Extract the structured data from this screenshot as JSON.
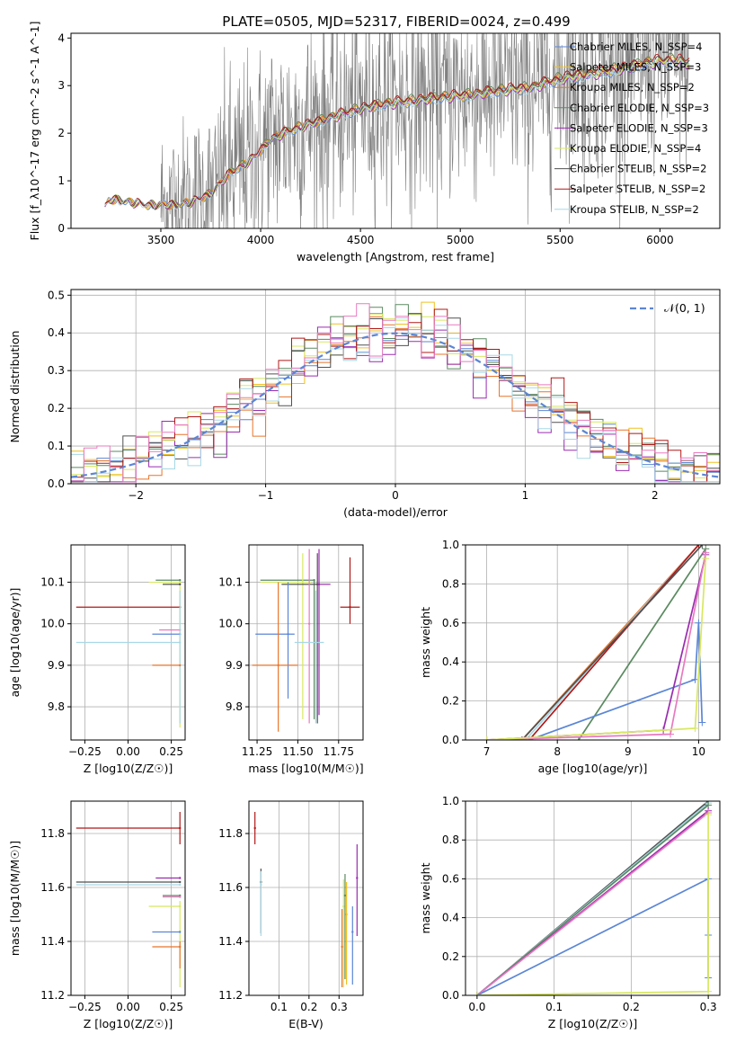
{
  "figure_title": "PLATE=0505, MJD=52317, FIBERID=0024, z=0.499",
  "colors": {
    "chabrier_miles": "#5b86d6",
    "salpeter_miles": "#f0c020",
    "kroupa_miles": "#e8742a",
    "chabrier_elodie": "#5a8a60",
    "salpeter_elodie": "#9a2cb0",
    "kroupa_elodie": "#d7e860",
    "chabrier_stelib": "#505050",
    "salpeter_stelib": "#b01818",
    "kroupa_stelib": "#a8d8e6",
    "pink": "#e87ac0",
    "data": "#808080",
    "grid": "#b0b0b0"
  },
  "chart_data": [
    {
      "id": "spectrum",
      "type": "line",
      "title": "PLATE=0505, MJD=52317, FIBERID=0024, z=0.499",
      "xlabel": "wavelength [Angstrom, rest frame]",
      "ylabel": "Flux [f_λ10^-17 erg cm^-2 s^-1 A^-1]",
      "xlim": [
        3050,
        6300
      ],
      "ylim": [
        0,
        4.1
      ],
      "xticks": [
        3500,
        4000,
        4500,
        5000,
        5500,
        6000
      ],
      "yticks": [
        0,
        1,
        2,
        3,
        4
      ],
      "grid": false,
      "legend_position": "top-right",
      "legend": [
        {
          "label": "Chabrier MILES, N_SSP=4",
          "color": "chabrier_miles"
        },
        {
          "label": "Salpeter MILES, N_SSP=3",
          "color": "salpeter_miles"
        },
        {
          "label": "Kroupa MILES, N_SSP=2",
          "color": "kroupa_miles"
        },
        {
          "label": "Chabrier ELODIE, N_SSP=3",
          "color": "chabrier_elodie"
        },
        {
          "label": "Salpeter ELODIE, N_SSP=3",
          "color": "salpeter_elodie"
        },
        {
          "label": "Kroupa ELODIE, N_SSP=4",
          "color": "kroupa_elodie"
        },
        {
          "label": "Chabrier STELIB, N_SSP=2",
          "color": "chabrier_stelib"
        },
        {
          "label": "Salpeter STELIB, N_SSP=2",
          "color": "salpeter_stelib"
        },
        {
          "label": "Kroupa STELIB, N_SSP=2",
          "color": "kroupa_stelib"
        }
      ],
      "model_continuum": {
        "x": [
          3220,
          3240,
          3280,
          3350,
          3450,
          3550,
          3650,
          3750,
          3850,
          3950,
          4050,
          4150,
          4300,
          4450,
          4600,
          4750,
          4900,
          5050,
          5200,
          5350,
          5500,
          5650,
          5800,
          5950,
          6100,
          6150
        ],
        "y": [
          0.45,
          0.6,
          0.62,
          0.55,
          0.5,
          0.5,
          0.55,
          0.75,
          1.2,
          1.45,
          1.9,
          2.1,
          2.3,
          2.5,
          2.65,
          2.72,
          2.8,
          2.85,
          2.95,
          3.0,
          3.2,
          3.3,
          3.4,
          3.55,
          3.6,
          3.5
        ]
      }
    },
    {
      "id": "residuals",
      "type": "line",
      "xlabel": "(data-model)/error",
      "ylabel": "Normed distribution",
      "xlim": [
        -2.5,
        2.5
      ],
      "ylim": [
        0,
        0.515
      ],
      "xticks": [
        -2,
        -1,
        0,
        1,
        2
      ],
      "yticks": [
        0.0,
        0.1,
        0.2,
        0.3,
        0.4,
        0.5
      ],
      "grid": true,
      "legend_position": "top-right",
      "legend": [
        {
          "label": "𝒩(0, 1)",
          "color": "chabrier_miles",
          "style": "dashed"
        }
      ],
      "bin_width": 0.1
    },
    {
      "id": "age_vs_Z",
      "type": "scatter",
      "xlabel": "Z [log10(Z/Z☉)]",
      "ylabel": "age  [log10(age/yr)]",
      "xlim": [
        -0.33,
        0.33
      ],
      "ylim": [
        9.72,
        10.19
      ],
      "xticks": [
        -0.25,
        0.0,
        0.25
      ],
      "yticks": [
        9.8,
        9.9,
        10.0,
        10.1
      ],
      "grid": true,
      "points": [
        {
          "series": "salpeter_stelib",
          "x": 0.3,
          "xlo": -0.3,
          "xhi": 0.3,
          "y": 10.04
        },
        {
          "series": "chabrier_elodie",
          "x": 0.3,
          "xlo": 0.16,
          "xhi": 0.3,
          "y": 10.105
        },
        {
          "series": "kroupa_elodie",
          "x": 0.3,
          "xlo": 0.12,
          "xhi": 0.3,
          "y": 10.1,
          "ylo": 9.75,
          "yhi": 10.1
        },
        {
          "series": "chabrier_stelib",
          "x": 0.3,
          "xlo": 0.2,
          "xhi": 0.3,
          "y": 10.095
        },
        {
          "series": "pink",
          "x": 0.3,
          "xlo": 0.18,
          "xhi": 0.3,
          "y": 9.985
        },
        {
          "series": "chabrier_miles",
          "x": 0.3,
          "xlo": 0.14,
          "xhi": 0.3,
          "y": 9.975
        },
        {
          "series": "kroupa_stelib",
          "x": 0.3,
          "xlo": -0.3,
          "xhi": 0.3,
          "y": 9.955,
          "ylo": 9.76,
          "yhi": 10.08
        },
        {
          "series": "kroupa_miles",
          "x": 0.3,
          "xlo": 0.14,
          "xhi": 0.3,
          "y": 9.9
        }
      ]
    },
    {
      "id": "age_vs_mass",
      "type": "scatter",
      "xlabel": "mass [log10(M/M☉)]",
      "ylabel": "",
      "xlim": [
        11.2,
        11.9
      ],
      "ylim": [
        9.72,
        10.19
      ],
      "xticks": [
        11.25,
        11.5,
        11.75
      ],
      "yticks": [
        9.8,
        9.9,
        10.0,
        10.1
      ],
      "grid": true,
      "points": [
        {
          "series": "salpeter_stelib",
          "x": 11.82,
          "xlo": 11.76,
          "xhi": 11.88,
          "y": 10.04,
          "ylo": 10.0,
          "yhi": 10.16
        },
        {
          "series": "chabrier_elodie",
          "x": 11.6,
          "xlo": 11.27,
          "xhi": 11.6,
          "y": 10.105,
          "ylo": 9.77,
          "yhi": 10.105
        },
        {
          "series": "kroupa_elodie",
          "x": 11.53,
          "xlo": 11.27,
          "xhi": 11.58,
          "y": 10.1,
          "ylo": 9.77,
          "yhi": 10.17
        },
        {
          "series": "chabrier_stelib",
          "x": 11.62,
          "xlo": 11.4,
          "xhi": 11.62,
          "y": 10.095,
          "ylo": 9.76,
          "yhi": 10.17
        },
        {
          "series": "salpeter_elodie",
          "x": 11.63,
          "xlo": 11.63,
          "xhi": 11.7,
          "y": 10.095,
          "ylo": 9.78,
          "yhi": 10.18
        },
        {
          "series": "pink",
          "x": 11.57,
          "y": 10.0,
          "ylo": 9.76,
          "yhi": 10.18
        },
        {
          "series": "chabrier_miles",
          "x": 11.44,
          "xlo": 11.24,
          "xhi": 11.48,
          "y": 9.975,
          "ylo": 9.82,
          "yhi": 10.1
        },
        {
          "series": "kroupa_stelib",
          "x": 11.61,
          "xlo": 11.48,
          "xhi": 11.66,
          "y": 9.955,
          "ylo": 9.76,
          "yhi": 10.08
        },
        {
          "series": "kroupa_miles",
          "x": 11.38,
          "xlo": 11.22,
          "xhi": 11.5,
          "y": 9.9,
          "ylo": 9.74,
          "yhi": 10.1
        }
      ]
    },
    {
      "id": "cumulative_age",
      "type": "line",
      "xlabel": "age  [log10(age/yr)]",
      "ylabel": "mass weight",
      "xlim": [
        6.7,
        10.3
      ],
      "ylim": [
        0,
        1.0
      ],
      "xticks": [
        7,
        8,
        9,
        10
      ],
      "yticks": [
        0.0,
        0.2,
        0.4,
        0.6,
        0.8,
        1.0
      ],
      "grid": true,
      "series": [
        {
          "name": "kroupa_miles",
          "x": [
            7.5,
            10.0
          ],
          "y": [
            0.0,
            1.0
          ]
        },
        {
          "name": "kroupa_stelib",
          "x": [
            7.55,
            10.0
          ],
          "y": [
            0.0,
            1.0
          ]
        },
        {
          "name": "salpeter_stelib",
          "x": [
            7.6,
            10.0
          ],
          "y": [
            0.0,
            1.0
          ]
        },
        {
          "name": "chabrier_stelib",
          "x": [
            7.5,
            10.05
          ],
          "y": [
            0.0,
            1.0
          ]
        },
        {
          "name": "chabrier_elodie",
          "x": [
            8.3,
            10.1
          ],
          "y": [
            0.0,
            0.98
          ]
        },
        {
          "name": "chabrier_miles",
          "x": [
            7.6,
            9.95,
            10.0,
            10.05
          ],
          "y": [
            0.0,
            0.31,
            0.6,
            0.09
          ]
        },
        {
          "name": "salpeter_elodie",
          "x": [
            7.0,
            9.5,
            10.1
          ],
          "y": [
            0.0,
            0.05,
            0.95
          ]
        },
        {
          "name": "pink",
          "x": [
            7.0,
            9.6,
            10.1
          ],
          "y": [
            0.0,
            0.03,
            0.96
          ]
        },
        {
          "name": "kroupa_elodie",
          "x": [
            7.0,
            9.95,
            10.1
          ],
          "y": [
            0.0,
            0.06,
            0.93
          ]
        }
      ]
    },
    {
      "id": "mass_vs_Z",
      "type": "scatter",
      "xlabel": "Z [log10(Z/Z☉)]",
      "ylabel": "mass [log10(M/M☉)]",
      "xlim": [
        -0.33,
        0.33
      ],
      "ylim": [
        11.2,
        11.92
      ],
      "xticks": [
        -0.25,
        0.0,
        0.25
      ],
      "yticks": [
        11.2,
        11.4,
        11.6,
        11.8
      ],
      "grid": true,
      "points": [
        {
          "series": "salpeter_stelib",
          "x": 0.3,
          "xlo": -0.3,
          "xhi": 0.3,
          "y": 11.82,
          "ylo": 11.76,
          "yhi": 11.88
        },
        {
          "series": "salpeter_elodie",
          "x": 0.3,
          "xlo": 0.16,
          "xhi": 0.3,
          "y": 11.635
        },
        {
          "series": "chabrier_stelib",
          "x": 0.3,
          "xlo": -0.3,
          "xhi": 0.3,
          "y": 11.62
        },
        {
          "series": "kroupa_stelib",
          "x": 0.3,
          "xlo": -0.3,
          "xhi": 0.3,
          "y": 11.61
        },
        {
          "series": "chabrier_elodie",
          "x": 0.3,
          "xlo": 0.2,
          "xhi": 0.3,
          "y": 11.57
        },
        {
          "series": "pink",
          "x": 0.3,
          "xlo": 0.2,
          "xhi": 0.3,
          "y": 11.565
        },
        {
          "series": "kroupa_elodie",
          "x": 0.3,
          "xlo": 0.12,
          "xhi": 0.3,
          "y": 11.53,
          "ylo": 11.23,
          "yhi": 11.55
        },
        {
          "series": "chabrier_miles",
          "x": 0.3,
          "xlo": 0.14,
          "xhi": 0.3,
          "y": 11.435
        },
        {
          "series": "kroupa_miles",
          "x": 0.3,
          "xlo": 0.14,
          "xhi": 0.3,
          "y": 11.38,
          "ylo": 11.3,
          "yhi": 11.4
        }
      ]
    },
    {
      "id": "mass_vs_EBV",
      "type": "scatter",
      "xlabel": "E(B-V)",
      "ylabel": "",
      "xlim": [
        0.0,
        0.38
      ],
      "ylim": [
        11.2,
        11.92
      ],
      "xticks": [
        0.1,
        0.2,
        0.3
      ],
      "yticks": [
        11.2,
        11.4,
        11.6,
        11.8
      ],
      "grid": true,
      "points": [
        {
          "series": "salpeter_stelib",
          "x": 0.02,
          "y": 11.82,
          "ylo": 11.76,
          "yhi": 11.88
        },
        {
          "series": "chabrier_stelib",
          "x": 0.04,
          "y": 11.62,
          "ylo": 11.43,
          "yhi": 11.67
        },
        {
          "series": "kroupa_stelib",
          "x": 0.04,
          "y": 11.61,
          "ylo": 11.42,
          "yhi": 11.66
        },
        {
          "series": "kroupa_miles",
          "x": 0.31,
          "y": 11.38,
          "ylo": 11.23,
          "yhi": 11.52
        },
        {
          "series": "kroupa_elodie",
          "x": 0.315,
          "y": 11.53,
          "ylo": 11.23,
          "yhi": 11.63
        },
        {
          "series": "chabrier_elodie",
          "x": 0.32,
          "y": 11.57,
          "ylo": 11.26,
          "yhi": 11.65
        },
        {
          "series": "salpeter_miles",
          "x": 0.325,
          "y": 11.5,
          "ylo": 11.24,
          "yhi": 11.62
        },
        {
          "series": "chabrier_miles",
          "x": 0.345,
          "y": 11.435,
          "ylo": 11.24,
          "yhi": 11.53
        },
        {
          "series": "salpeter_elodie",
          "x": 0.36,
          "y": 11.635,
          "ylo": 11.42,
          "yhi": 11.76
        }
      ]
    },
    {
      "id": "cumulative_Z",
      "type": "line",
      "xlabel": "Z [log10(Z/Z☉)]",
      "ylabel": "mass weight",
      "xlim": [
        -0.015,
        0.315
      ],
      "ylim": [
        0,
        1.0
      ],
      "xticks": [
        0.0,
        0.1,
        0.2,
        0.3
      ],
      "yticks": [
        0.0,
        0.2,
        0.4,
        0.6,
        0.8,
        1.0
      ],
      "grid": true,
      "series": [
        {
          "name": "chabrier_stelib",
          "x": [
            0.0,
            0.3
          ],
          "y": [
            0.0,
            1.0
          ]
        },
        {
          "name": "kroupa_stelib",
          "x": [
            0.0,
            0.3
          ],
          "y": [
            0.0,
            0.99
          ]
        },
        {
          "name": "chabrier_elodie",
          "x": [
            0.0,
            0.3
          ],
          "y": [
            0.0,
            0.98
          ]
        },
        {
          "name": "salpeter_elodie",
          "x": [
            0.0,
            0.3
          ],
          "y": [
            0.0,
            0.95
          ]
        },
        {
          "name": "pink",
          "x": [
            0.0,
            0.3
          ],
          "y": [
            0.0,
            0.94
          ]
        },
        {
          "name": "chabrier_miles",
          "x": [
            0.0,
            0.3,
            0.3,
            0.3
          ],
          "y": [
            0.0,
            0.6,
            0.31,
            0.09
          ]
        },
        {
          "name": "kroupa_elodie",
          "x": [
            0.0,
            0.3,
            0.3
          ],
          "y": [
            0.0,
            0.02,
            0.93
          ]
        }
      ]
    }
  ]
}
